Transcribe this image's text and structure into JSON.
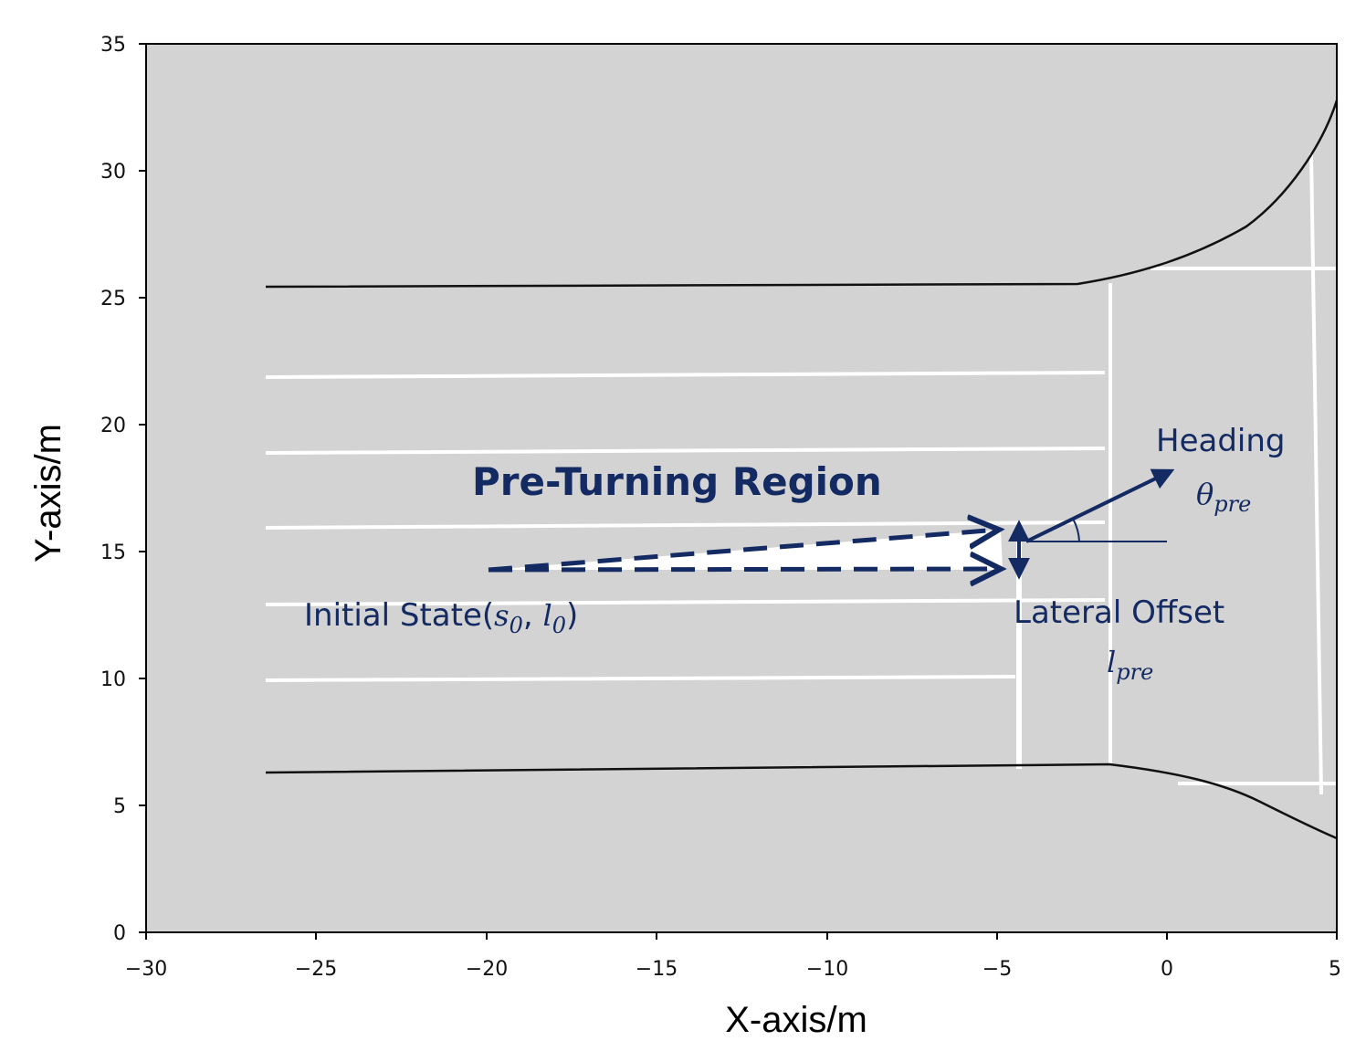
{
  "axes": {
    "x_label": "X-axis/m",
    "y_label": "Y-axis/m",
    "x_range": [
      -30,
      5
    ],
    "y_range": [
      0,
      35
    ],
    "x_ticks": [
      "−30",
      "−25",
      "−20",
      "−15",
      "−10",
      "−5",
      "0",
      "5"
    ],
    "y_ticks": [
      "0",
      "5",
      "10",
      "15",
      "20",
      "25",
      "30",
      "35"
    ]
  },
  "annotations": {
    "region_title": "Pre-Turning Region",
    "initial_state_text": "Initial State(",
    "initial_state_s": "s",
    "initial_state_s_sub": "0",
    "initial_state_comma": ", ",
    "initial_state_l": "l",
    "initial_state_l_sub": "0",
    "initial_state_close": ")",
    "heading_label": "Heading",
    "heading_symbol": "θ",
    "heading_sub": "pre",
    "lateral_label": "Lateral Offset",
    "lateral_symbol": "l",
    "lateral_sub": "pre"
  },
  "colors": {
    "road_background": "#d3d3d3",
    "lane_marking": "#ffffff",
    "road_boundary": "#111111",
    "annotation": "#142a63"
  }
}
